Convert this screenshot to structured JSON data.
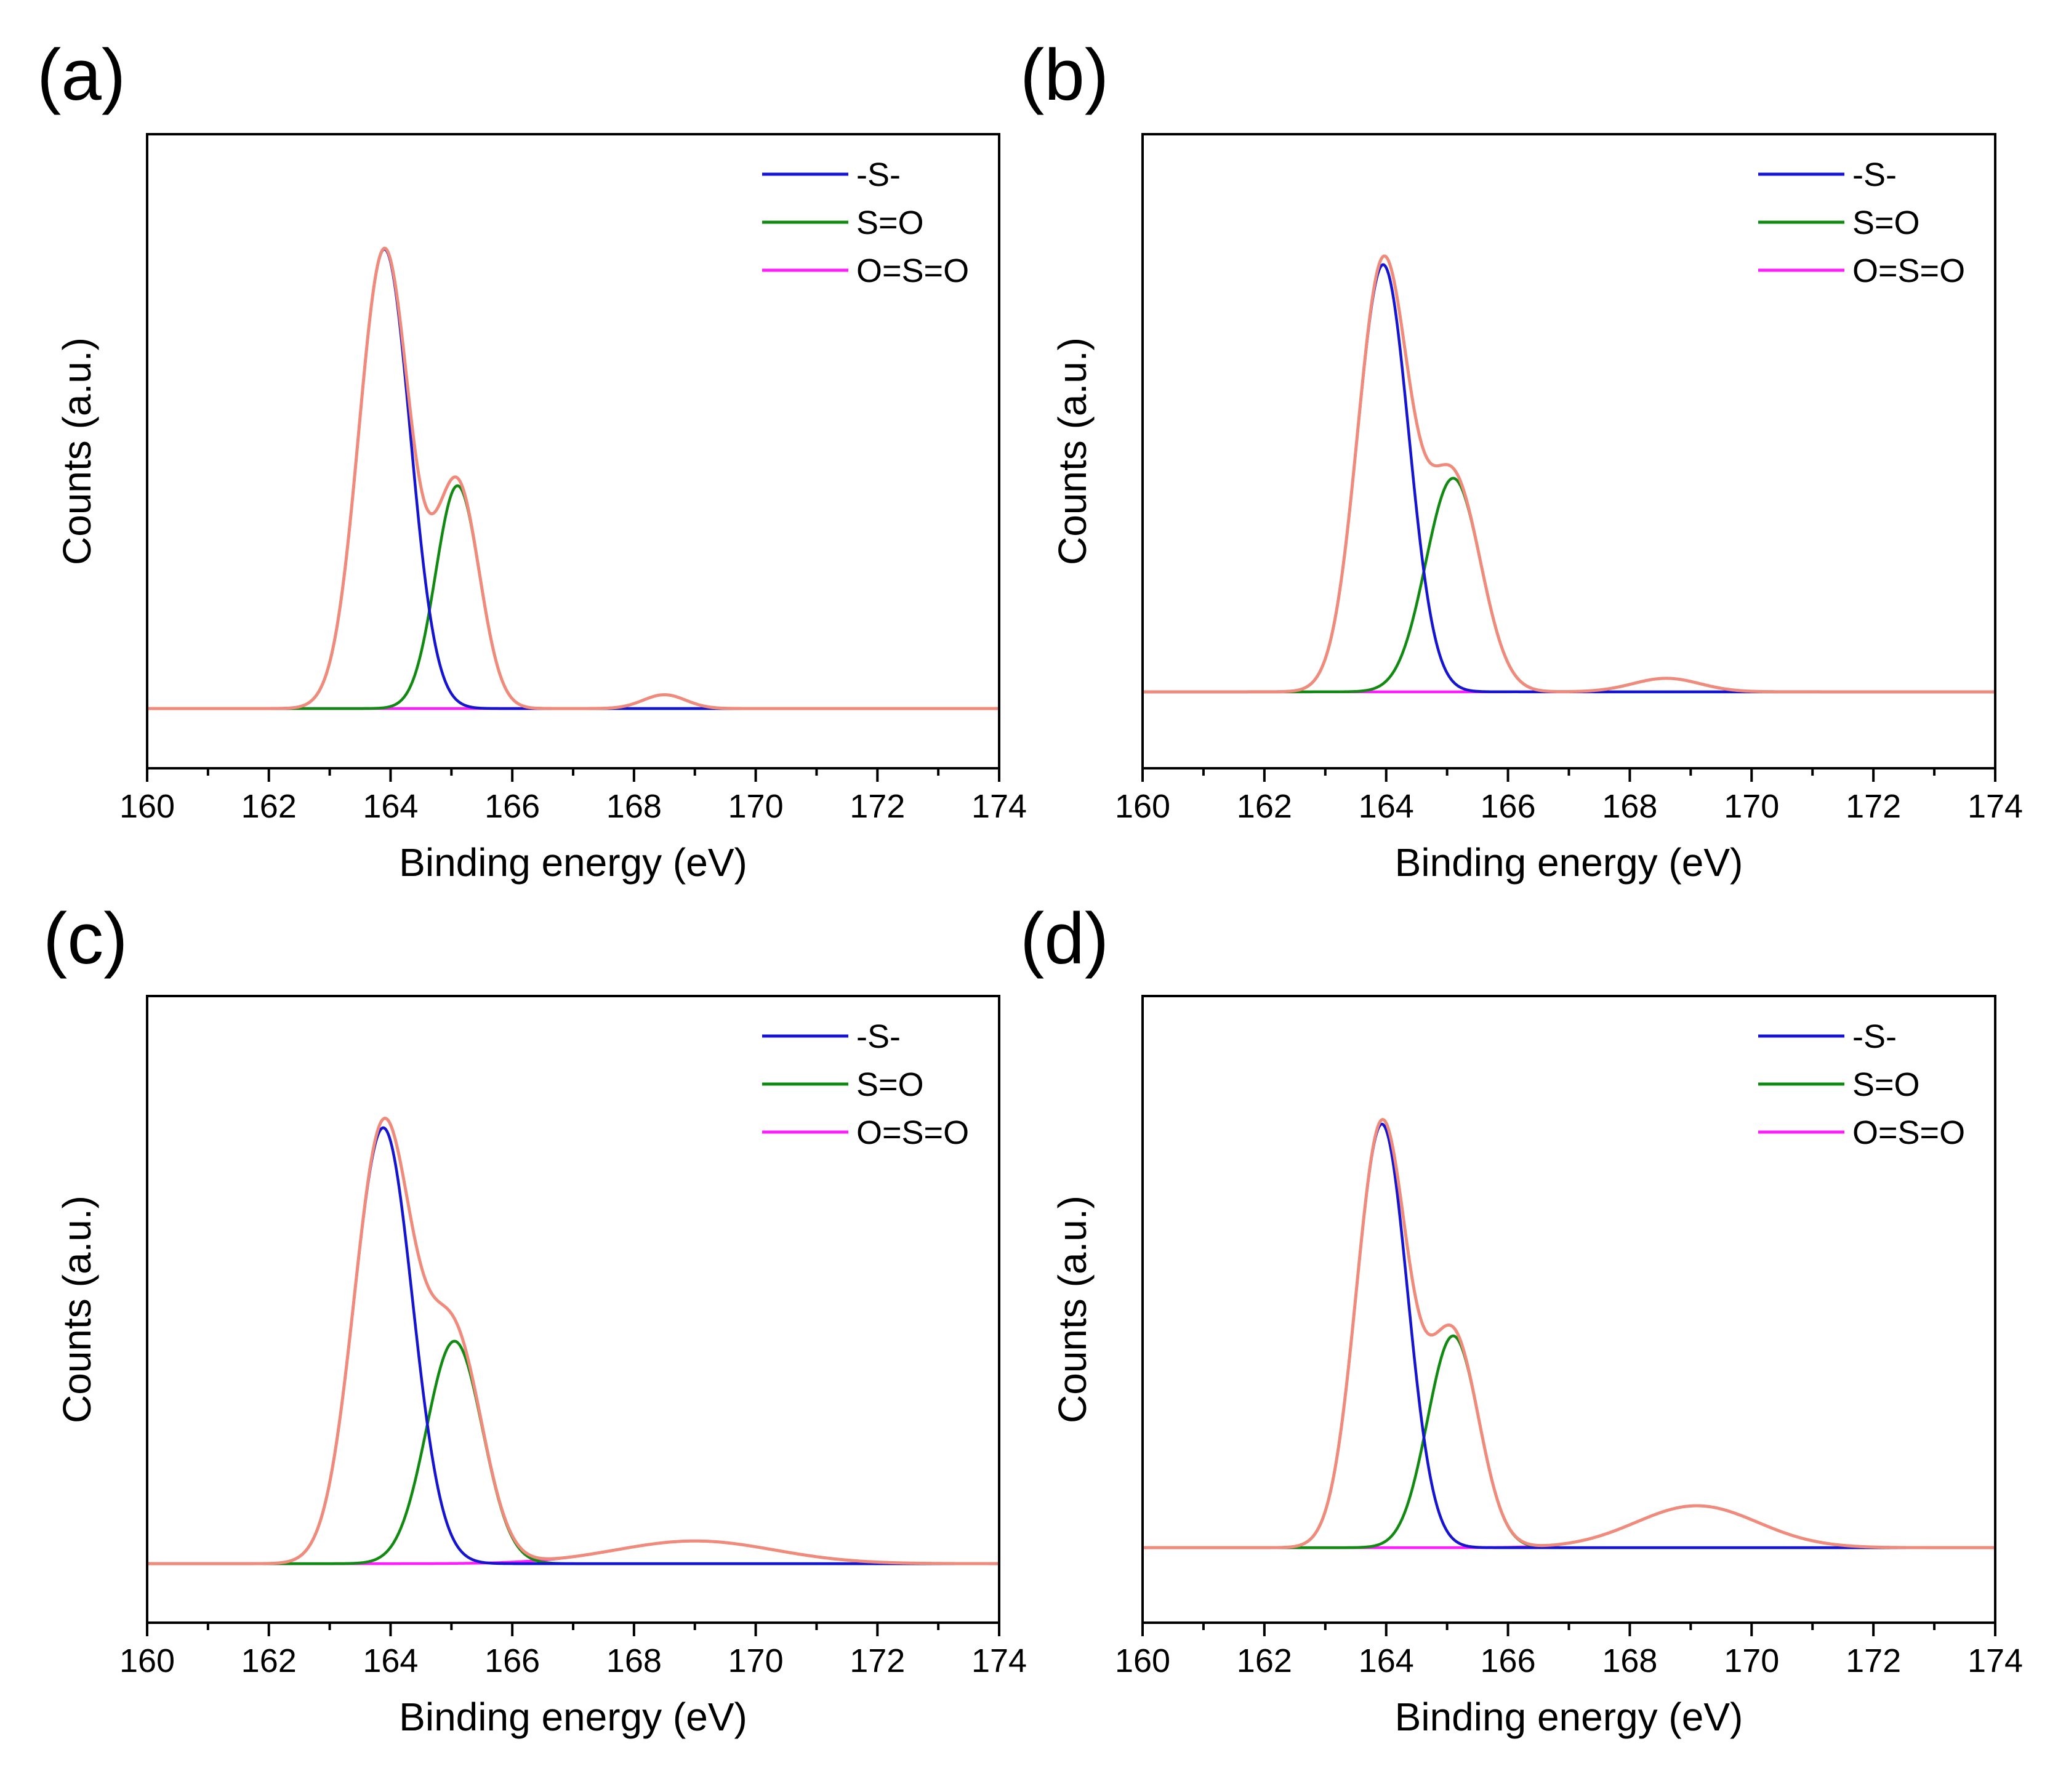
{
  "figure": {
    "panels": [
      {
        "label": "(a)"
      },
      {
        "label": "(b)"
      },
      {
        "label": "(c)"
      },
      {
        "label": "(d)"
      }
    ]
  },
  "chart_data": [
    {
      "panel": "(a)",
      "type": "line",
      "title": "",
      "xlabel": "Binding energy (eV)",
      "ylabel": "Counts (a.u.)",
      "xlim": [
        160,
        174
      ],
      "ylim": [
        -0.13,
        1.25
      ],
      "xticks": [
        160,
        162,
        164,
        166,
        168,
        170,
        172,
        174
      ],
      "yticks": [],
      "grid": false,
      "legend_position": "top-right",
      "series": [
        {
          "name": "-S-",
          "kind": "peak",
          "center": 163.9,
          "height": 1.0,
          "sigma": 0.42,
          "color": "#1414d2"
        },
        {
          "name": "S=O",
          "kind": "peak",
          "center": 165.1,
          "height": 0.485,
          "sigma": 0.36,
          "color": "#108a10"
        },
        {
          "name": "O=S=O",
          "kind": "peak",
          "center": 168.5,
          "height": 0.03,
          "sigma": 0.35,
          "color": "#ff1cff"
        },
        {
          "name": "",
          "kind": "envelope",
          "color": "#f08a7a"
        }
      ],
      "legend_colors": [
        "#1414d2",
        "#108a10",
        "#ff1cff"
      ]
    },
    {
      "panel": "(b)",
      "type": "line",
      "title": "",
      "xlabel": "Binding energy (eV)",
      "ylabel": "Counts (a.u.)",
      "xlim": [
        160,
        174
      ],
      "ylim": [
        -0.17,
        1.24
      ],
      "xticks": [
        160,
        162,
        164,
        166,
        168,
        170,
        172,
        174
      ],
      "yticks": [],
      "grid": false,
      "legend_position": "top-right",
      "series": [
        {
          "name": "-S-",
          "kind": "peak",
          "center": 163.95,
          "height": 0.95,
          "sigma": 0.42,
          "color": "#1414d2"
        },
        {
          "name": "S=O",
          "kind": "peak",
          "center": 165.1,
          "height": 0.475,
          "sigma": 0.45,
          "color": "#108a10"
        },
        {
          "name": "O=S=O",
          "kind": "peak",
          "center": 168.6,
          "height": 0.03,
          "sigma": 0.55,
          "color": "#ff1cff"
        },
        {
          "name": "",
          "kind": "envelope",
          "color": "#f08a7a"
        }
      ],
      "legend_colors": [
        "#1414d2",
        "#108a10",
        "#ff1cff"
      ]
    },
    {
      "panel": "(c)",
      "type": "line",
      "title": "",
      "xlabel": "Binding energy (eV)",
      "ylabel": "Counts (a.u.)",
      "xlim": [
        160,
        174
      ],
      "ylim": [
        -0.13,
        1.25
      ],
      "xticks": [
        160,
        162,
        164,
        166,
        168,
        170,
        172,
        174
      ],
      "yticks": [],
      "grid": false,
      "legend_position": "top-right",
      "series": [
        {
          "name": "-S-",
          "kind": "peak",
          "center": 163.88,
          "height": 0.96,
          "sigma": 0.48,
          "color": "#1414d2"
        },
        {
          "name": "S=O",
          "kind": "peak",
          "center": 165.05,
          "height": 0.49,
          "sigma": 0.46,
          "color": "#108a10"
        },
        {
          "name": "O=S=O",
          "kind": "peak",
          "center": 169.0,
          "height": 0.05,
          "sigma": 1.3,
          "color": "#ff1cff"
        },
        {
          "name": "",
          "kind": "envelope",
          "color": "#f08a7a"
        }
      ],
      "legend_colors": [
        "#1414d2",
        "#108a10",
        "#ff1cff"
      ]
    },
    {
      "panel": "(d)",
      "type": "line",
      "title": "",
      "xlabel": "Binding energy (eV)",
      "ylabel": "Counts (a.u.)",
      "xlim": [
        160,
        174
      ],
      "ylim": [
        -0.17,
        1.25
      ],
      "xticks": [
        160,
        162,
        164,
        166,
        168,
        170,
        172,
        174
      ],
      "yticks": [],
      "grid": false,
      "legend_position": "top-right",
      "series": [
        {
          "name": "-S-",
          "kind": "peak",
          "center": 163.93,
          "height": 0.96,
          "sigma": 0.42,
          "color": "#1414d2"
        },
        {
          "name": "S=O",
          "kind": "peak",
          "center": 165.1,
          "height": 0.48,
          "sigma": 0.42,
          "color": "#108a10"
        },
        {
          "name": "O=S=O",
          "kind": "peak",
          "center": 169.1,
          "height": 0.095,
          "sigma": 1.0,
          "color": "#ff1cff"
        },
        {
          "name": "",
          "kind": "envelope",
          "color": "#f08a7a"
        }
      ],
      "legend_colors": [
        "#1414d2",
        "#108a10",
        "#ff1cff"
      ]
    }
  ]
}
